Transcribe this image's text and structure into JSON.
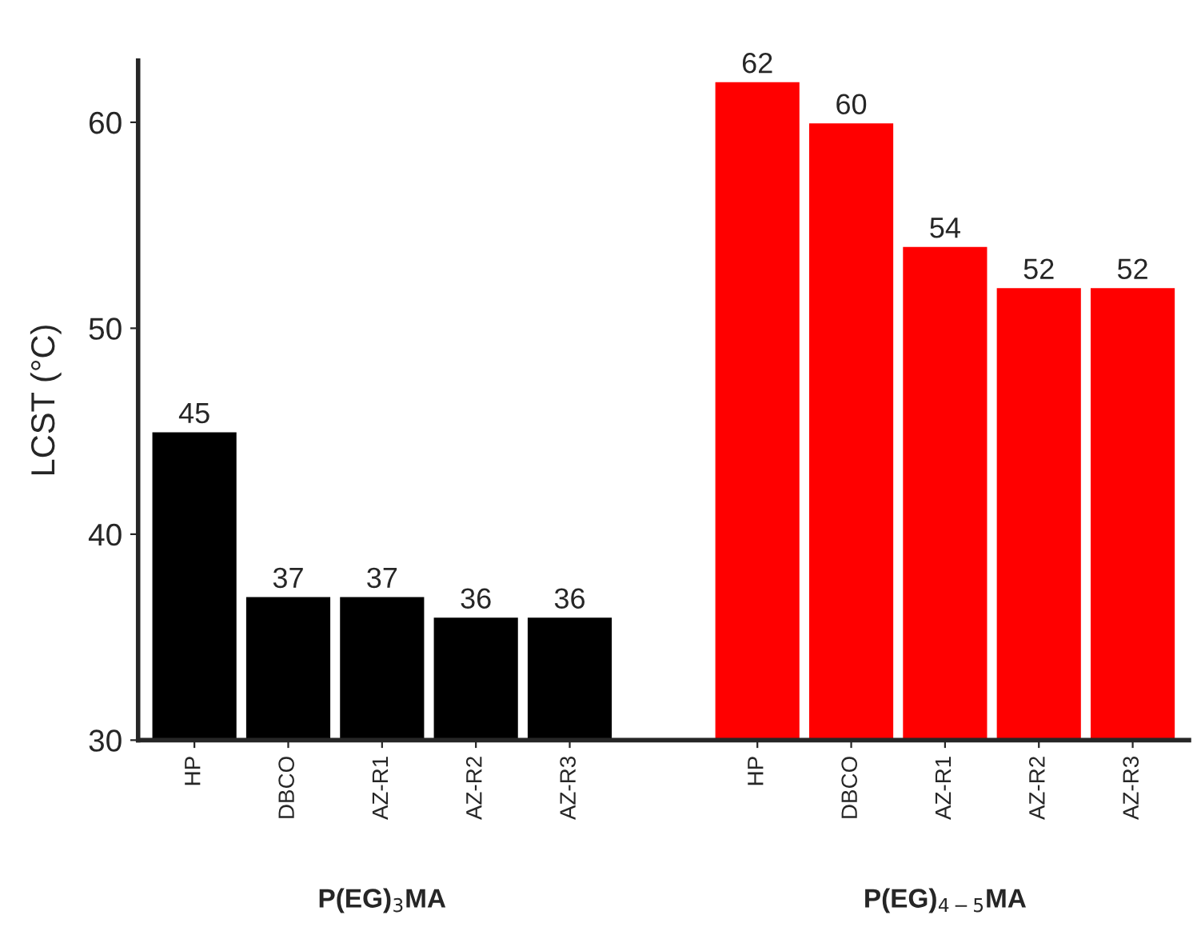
{
  "chart_data": {
    "type": "bar",
    "ylabel": "LCST (°C)",
    "categories": [
      "HP",
      "DBCO",
      "AZ-R1",
      "AZ-R2",
      "AZ-R3",
      null,
      "HP",
      "DBCO",
      "AZ-R1",
      "AZ-R2",
      "AZ-R3"
    ],
    "values": [
      45,
      37,
      37,
      36,
      36,
      null,
      62,
      60,
      54,
      52,
      52
    ],
    "colors": [
      "#000000",
      "#000000",
      "#000000",
      "#000000",
      "#000000",
      "#ffffff",
      "#ff0000",
      "#ff0000",
      "#ff0000",
      "#ff0000",
      "#ff0000"
    ],
    "data_labels": true,
    "ylim": [
      30,
      63
    ],
    "yticks": [
      30,
      40,
      50,
      60
    ],
    "grid": false,
    "legend": false,
    "annotations": [
      "P(EG)$_{3}$MA",
      "P(EG)$_{4−5}$MA"
    ]
  }
}
